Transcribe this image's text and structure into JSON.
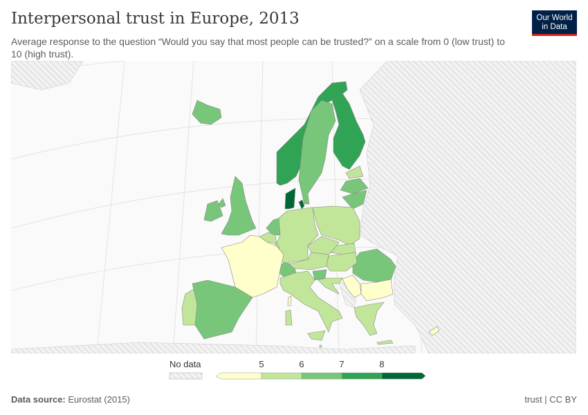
{
  "title": "Interpersonal trust in Europe, 2013",
  "subtitle": "Average response to the question “Would you say that most people can be trusted?” on a scale from 0 (low trust) to 10 (high trust).",
  "logo": {
    "line1": "Our World",
    "line2": "in Data"
  },
  "footer": {
    "source_label": "Data source:",
    "source": "Eurostat (2015)",
    "license": "trust | CC BY"
  },
  "legend": {
    "no_data": "No data",
    "ticks": [
      "5",
      "6",
      "7",
      "8"
    ],
    "colors": [
      "#ffffcc",
      "#c2e699",
      "#78c679",
      "#31a354",
      "#006837"
    ],
    "no_data_color": "#e8e8e8"
  },
  "chart_data": {
    "type": "choropleth",
    "title": "Interpersonal trust in Europe, 2013",
    "bins": [
      5,
      6,
      7,
      8
    ],
    "values": {
      "Denmark": 8.3,
      "Finland": 7.4,
      "Norway": 7.3,
      "Sweden": 6.9,
      "Netherlands": 6.5,
      "Iceland": 6.6,
      "United Kingdom": 6.2,
      "Ireland": 6.2,
      "Switzerland": 6.4,
      "Slovenia": 6.1,
      "Spain": 6.3,
      "Romania": 6.1,
      "Latvia": 6.0,
      "Lithuania": 6.1,
      "Estonia": 5.5,
      "Belgium": 5.6,
      "Luxembourg": 5.7,
      "Germany": 5.5,
      "Poland": 5.6,
      "Czechia": 5.6,
      "Slovakia": 5.5,
      "Austria": 5.9,
      "Hungary": 5.3,
      "Croatia": 5.2,
      "Italy": 5.3,
      "Malta": 5.4,
      "Portugal": 5.3,
      "Greece": 5.3,
      "France": 4.9,
      "Bulgaria": 4.6,
      "Serbia": 4.6,
      "Cyprus": 4.5
    }
  }
}
